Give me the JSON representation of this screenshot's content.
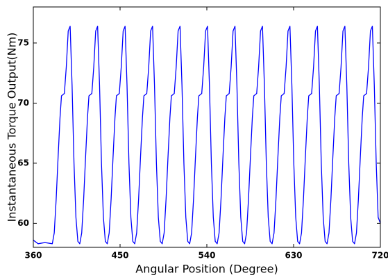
{
  "chart_data": {
    "type": "line",
    "xlabel": "Angular Position (Degree)",
    "ylabel": "Instantaneous Torque Output(Nm)",
    "xlim": [
      360,
      720
    ],
    "ylim": [
      58,
      78
    ],
    "xticks": [
      360,
      450,
      540,
      630,
      720
    ],
    "yticks": [
      60,
      65,
      70,
      75
    ],
    "grid": false,
    "color": "#0000ff",
    "x": [
      360,
      365,
      372,
      379.7,
      381.7,
      383.7,
      385.7,
      387.7,
      389.2,
      392.2,
      394.2,
      396.2,
      398.2,
      400.2,
      402.2,
      404.2,
      406.2,
      408.2,
      410.2,
      412.2,
      414.2,
      416.2,
      417.7,
      420.7,
      422.7,
      424.7,
      426.7,
      428.7,
      430.7,
      432.7,
      434.7,
      436.7,
      438.7,
      440.7,
      442.7,
      444.7,
      446.2,
      449.2,
      451.2,
      453.2,
      455.2,
      457.2,
      459.2,
      461.2,
      463.2,
      465.2,
      467.2,
      469.2,
      471.2,
      473.2,
      474.7,
      477.7,
      479.7,
      481.7,
      483.7,
      485.7,
      487.7,
      489.7,
      491.7,
      493.7,
      495.7,
      497.7,
      499.7,
      501.7,
      503.2,
      506.2,
      508.2,
      510.2,
      512.2,
      514.2,
      516.2,
      518.2,
      520.2,
      522.2,
      524.2,
      526.2,
      528.2,
      530.2,
      531.7,
      534.7,
      536.7,
      538.7,
      540.7,
      542.7,
      544.7,
      546.7,
      548.7,
      550.7,
      552.7,
      554.7,
      556.7,
      558.7,
      560.2,
      563.2,
      565.2,
      567.2,
      569.2,
      571.2,
      573.2,
      575.2,
      577.2,
      579.2,
      581.2,
      583.2,
      585.2,
      587.2,
      588.7,
      591.7,
      593.7,
      595.7,
      597.7,
      599.7,
      601.7,
      603.7,
      605.7,
      607.7,
      609.7,
      611.7,
      613.7,
      615.7,
      617.2,
      620.2,
      622.2,
      624.2,
      626.2,
      628.2,
      630.2,
      632.2,
      634.2,
      636.2,
      638.2,
      640.2,
      642.2,
      644.2,
      645.7,
      648.7,
      650.7,
      652.7,
      654.7,
      656.7,
      658.7,
      660.7,
      662.7,
      664.7,
      666.7,
      668.7,
      670.7,
      672.7,
      674.2,
      677.2,
      679.2,
      681.2,
      683.2,
      685.2,
      687.2,
      689.2,
      691.2,
      693.2,
      695.2,
      697.2,
      699.2,
      701.2,
      702.7,
      705.7,
      707.7,
      709.7,
      711.7,
      713.7,
      715.7,
      717.7,
      720
    ],
    "values": [
      58.6,
      58.3,
      58.4,
      58.3,
      59.2,
      62,
      65.5,
      68.8,
      70.6,
      70.8,
      73,
      76,
      76.4,
      71.5,
      65,
      60.5,
      58.5,
      58.3,
      59.2,
      62,
      65.5,
      68.8,
      70.6,
      70.8,
      73,
      76,
      76.4,
      71.5,
      65,
      60.5,
      58.5,
      58.3,
      59.2,
      62,
      65.5,
      68.8,
      70.6,
      70.8,
      73,
      76,
      76.4,
      71.5,
      65,
      60.5,
      58.5,
      58.3,
      59.2,
      62,
      65.5,
      68.8,
      70.6,
      70.8,
      73,
      76,
      76.4,
      71.5,
      65,
      60.5,
      58.5,
      58.3,
      59.2,
      62,
      65.5,
      68.8,
      70.6,
      70.8,
      73,
      76,
      76.4,
      71.5,
      65,
      60.5,
      58.5,
      58.3,
      59.2,
      62,
      65.5,
      68.8,
      70.6,
      70.8,
      73,
      76,
      76.4,
      71.5,
      65,
      60.5,
      58.5,
      58.3,
      59.2,
      62,
      65.5,
      68.8,
      70.6,
      70.8,
      73,
      76,
      76.4,
      71.5,
      65,
      60.5,
      58.5,
      58.3,
      59.2,
      62,
      65.5,
      68.8,
      70.6,
      70.8,
      73,
      76,
      76.4,
      71.5,
      65,
      60.5,
      58.5,
      58.3,
      59.2,
      62,
      65.5,
      68.8,
      70.6,
      70.8,
      73,
      76,
      76.4,
      71.5,
      65,
      60.5,
      58.5,
      58.3,
      59.2,
      62,
      65.5,
      68.8,
      70.6,
      70.8,
      73,
      76,
      76.4,
      71.5,
      65,
      60.5,
      58.5,
      58.3,
      59.2,
      62,
      65.5,
      68.8,
      70.6,
      70.8,
      73,
      76,
      76.4,
      71.5,
      65,
      60.5,
      58.5,
      58.3,
      59.2,
      62,
      65.5,
      68.8,
      70.6,
      70.8,
      73,
      76,
      76.4,
      71.5,
      65,
      60.5,
      60
    ]
  }
}
